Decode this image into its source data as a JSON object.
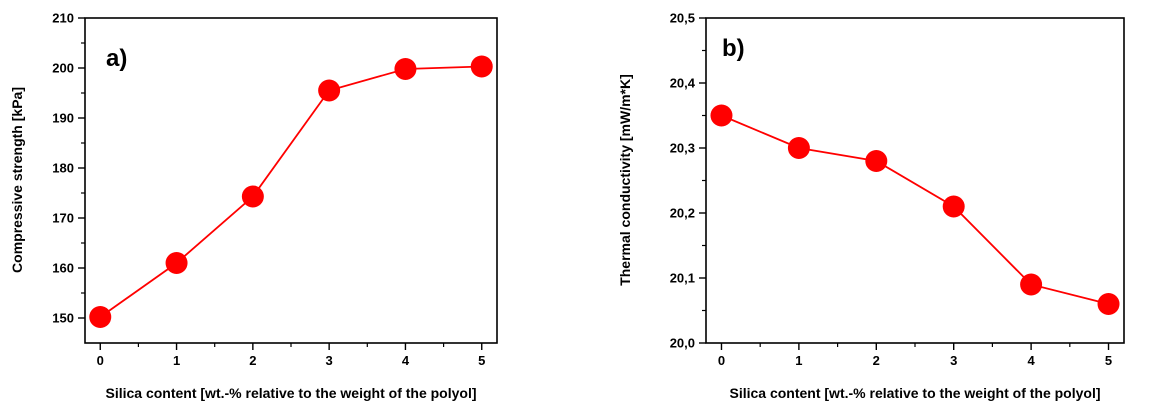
{
  "chart_data": [
    {
      "type": "line",
      "panel_label": "a)",
      "xlabel": "Silica content [wt.-% relative to the weight of the polyol]",
      "ylabel": "Compressive strength [kPa]",
      "xlim": [
        -0.2,
        5.2
      ],
      "ylim": [
        145,
        210
      ],
      "xticks": [
        0,
        1,
        2,
        3,
        4,
        5
      ],
      "xtick_labels": [
        "0",
        "1",
        "2",
        "3",
        "4",
        "5"
      ],
      "yticks": [
        150,
        160,
        170,
        180,
        190,
        200,
        210
      ],
      "ytick_labels": [
        "150",
        "160",
        "170",
        "180",
        "190",
        "200",
        "210"
      ],
      "grid": false,
      "series": [
        {
          "color": "#ff0000",
          "marker": "circle",
          "x": [
            0,
            1,
            2,
            3,
            4,
            5
          ],
          "y": [
            150.2,
            161,
            174.3,
            195.5,
            199.8,
            200.3
          ]
        }
      ]
    },
    {
      "type": "line",
      "panel_label": "b)",
      "xlabel": "Silica content [wt.-% relative to the weight of the polyol]",
      "ylabel": "Thermal conductivity [mW/m*K]",
      "xlim": [
        -0.2,
        5.2
      ],
      "ylim": [
        20.0,
        20.5
      ],
      "xticks": [
        0,
        1,
        2,
        3,
        4,
        5
      ],
      "xtick_labels": [
        "0",
        "1",
        "2",
        "3",
        "4",
        "5"
      ],
      "yticks": [
        20.0,
        20.1,
        20.2,
        20.3,
        20.4,
        20.5
      ],
      "ytick_labels": [
        "20,0",
        "20,1",
        "20,2",
        "20,3",
        "20,4",
        "20,5"
      ],
      "grid": false,
      "series": [
        {
          "color": "#ff0000",
          "marker": "circle",
          "x": [
            0,
            1,
            2,
            3,
            4,
            5
          ],
          "y": [
            20.35,
            20.3,
            20.28,
            20.21,
            20.09,
            20.06
          ]
        }
      ]
    }
  ]
}
